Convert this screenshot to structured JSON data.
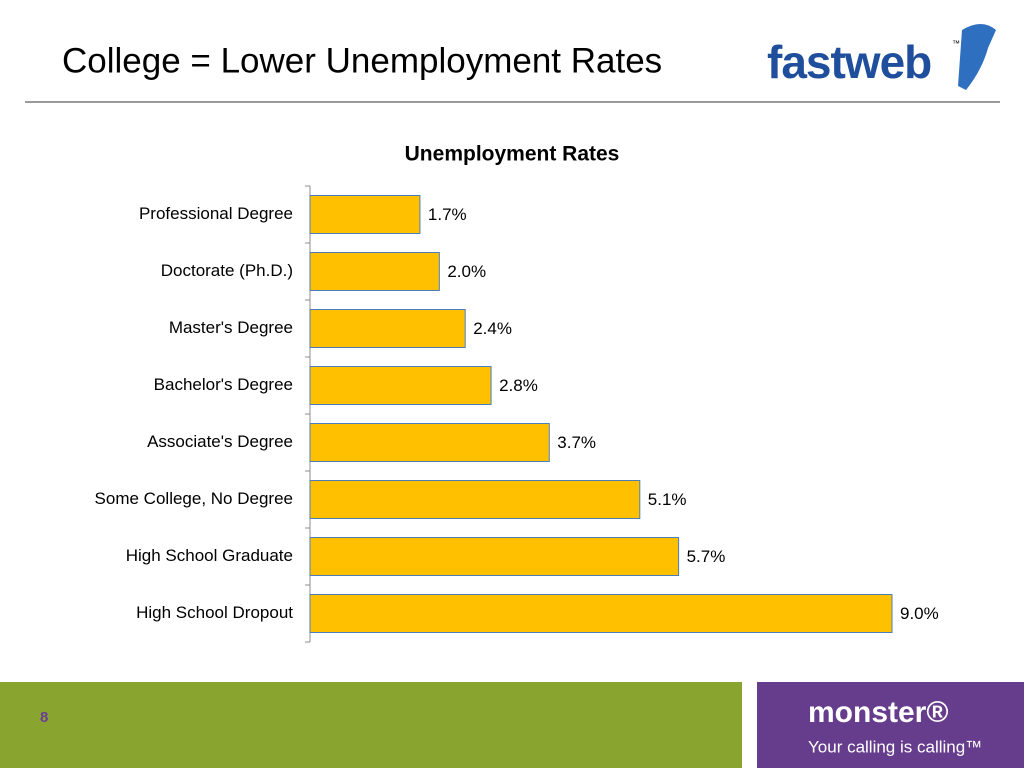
{
  "slide": {
    "title": "College = Lower Unemployment Rates",
    "logo": "fastweb",
    "logo_mark": "™",
    "page_number": "8",
    "footer_logo": "monster®",
    "footer_tagline": "Your calling is calling™"
  },
  "chart_data": {
    "type": "hbar",
    "title": "Unemployment Rates",
    "categories": [
      "Professional Degree",
      "Doctorate (Ph.D.)",
      "Master's Degree",
      "Bachelor's Degree",
      "Associate's Degree",
      "Some College, No Degree",
      "High School Graduate",
      "High School Dropout"
    ],
    "values": [
      1.7,
      2.0,
      2.4,
      2.8,
      3.7,
      5.1,
      5.7,
      9.0
    ],
    "value_labels": [
      "1.7%",
      "2.0%",
      "2.4%",
      "2.8%",
      "3.7%",
      "5.1%",
      "5.7%",
      "9.0%"
    ],
    "color": "#ffc000",
    "border_color": "#4a7ebb",
    "xlim": [
      0,
      9.0
    ]
  }
}
